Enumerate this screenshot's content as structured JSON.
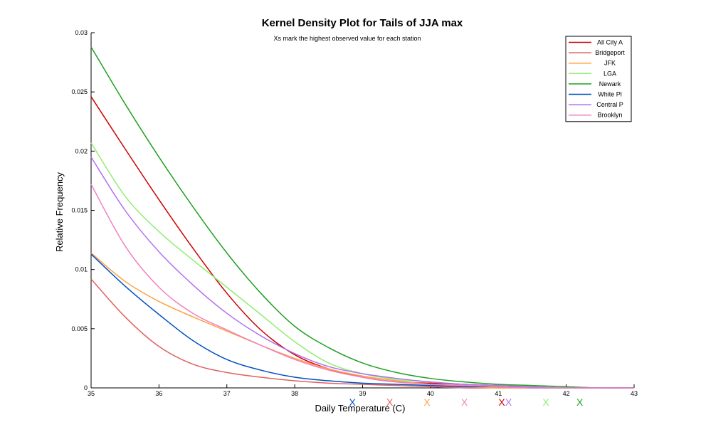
{
  "chart_data": {
    "type": "line",
    "title": "Kernel Density Plot for Tails of JJA max",
    "subtitle": "Xs mark the highest observed value for each station",
    "xlabel": "Daily Temperature (C)",
    "ylabel": "Relative Frequency",
    "xlim": [
      35,
      43
    ],
    "ylim": [
      0,
      0.03
    ],
    "xticks": [
      "35",
      "36",
      "37",
      "38",
      "39",
      "40",
      "41",
      "42",
      "43"
    ],
    "yticks": [
      "0",
      "0.005",
      "0.01",
      "0.015",
      "0.02",
      "0.025",
      "0.03"
    ],
    "legend_position": "top-right",
    "grid": false,
    "x": [
      35.0,
      35.5,
      36.0,
      36.5,
      37.0,
      37.5,
      38.0,
      38.5,
      39.0,
      39.5,
      40.0,
      40.5,
      41.0,
      41.5,
      42.0,
      42.5,
      43.0
    ],
    "series": [
      {
        "name": "All City A",
        "color": "#cc0000",
        "max_marker": 41.05,
        "values": [
          0.0246,
          0.0202,
          0.0159,
          0.0118,
          0.008,
          0.0049,
          0.0028,
          0.0016,
          0.0009,
          0.0005,
          0.0004,
          0.0003,
          0.0002,
          0.0001,
          0.0,
          0.0,
          0.0
        ]
      },
      {
        "name": "Bridgeport",
        "color": "#e06060",
        "max_marker": 39.4,
        "values": [
          0.0092,
          0.006,
          0.0035,
          0.002,
          0.0013,
          0.0009,
          0.0006,
          0.0004,
          0.0003,
          0.0002,
          0.0001,
          0.0,
          0.0,
          0.0,
          0.0,
          0.0,
          0.0
        ]
      },
      {
        "name": "JFK",
        "color": "#ffa040",
        "max_marker": 39.95,
        "values": [
          0.0114,
          0.009,
          0.0073,
          0.006,
          0.0048,
          0.0036,
          0.0025,
          0.0016,
          0.001,
          0.0006,
          0.0003,
          0.0001,
          0.0,
          0.0,
          0.0,
          0.0,
          0.0
        ]
      },
      {
        "name": "LGA",
        "color": "#90ee70",
        "max_marker": 41.7,
        "values": [
          0.0207,
          0.0162,
          0.0132,
          0.0108,
          0.0085,
          0.0062,
          0.0039,
          0.0021,
          0.0012,
          0.0007,
          0.0005,
          0.0003,
          0.0002,
          0.0001,
          0.0,
          0.0,
          0.0
        ]
      },
      {
        "name": "Newark",
        "color": "#20a020",
        "max_marker": 42.2,
        "values": [
          0.0288,
          0.024,
          0.0195,
          0.0153,
          0.0114,
          0.008,
          0.0052,
          0.0034,
          0.0021,
          0.0013,
          0.0008,
          0.0005,
          0.0003,
          0.0002,
          0.0001,
          0.0,
          0.0
        ]
      },
      {
        "name": "White Pl",
        "color": "#0050c0",
        "max_marker": 38.85,
        "values": [
          0.0113,
          0.0086,
          0.0062,
          0.004,
          0.0024,
          0.0015,
          0.0009,
          0.0006,
          0.0004,
          0.0003,
          0.0002,
          0.0001,
          0.0001,
          0.0,
          0.0,
          0.0,
          0.0
        ]
      },
      {
        "name": "Central P",
        "color": "#b070f0",
        "max_marker": 41.15,
        "values": [
          0.0195,
          0.015,
          0.0115,
          0.0087,
          0.0063,
          0.0044,
          0.0029,
          0.0018,
          0.0012,
          0.0008,
          0.0005,
          0.0003,
          0.0002,
          0.0001,
          0.0,
          0.0,
          0.0
        ]
      },
      {
        "name": "Brooklyn",
        "color": "#f080c0",
        "max_marker": 40.5,
        "values": [
          0.0172,
          0.012,
          0.0085,
          0.0063,
          0.0049,
          0.0036,
          0.0024,
          0.0015,
          0.0009,
          0.0005,
          0.0003,
          0.0002,
          0.0001,
          0.0,
          0.0,
          0.0,
          0.0
        ]
      }
    ]
  }
}
